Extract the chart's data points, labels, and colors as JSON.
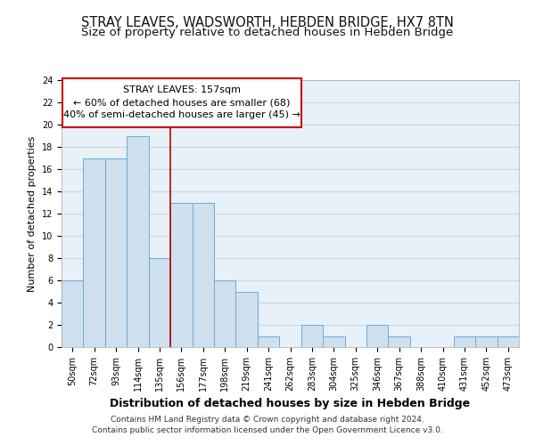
{
  "title": "STRAY LEAVES, WADSWORTH, HEBDEN BRIDGE, HX7 8TN",
  "subtitle": "Size of property relative to detached houses in Hebden Bridge",
  "xlabel": "Distribution of detached houses by size in Hebden Bridge",
  "ylabel": "Number of detached properties",
  "categories": [
    "50sqm",
    "72sqm",
    "93sqm",
    "114sqm",
    "135sqm",
    "156sqm",
    "177sqm",
    "198sqm",
    "219sqm",
    "241sqm",
    "262sqm",
    "283sqm",
    "304sqm",
    "325sqm",
    "346sqm",
    "367sqm",
    "388sqm",
    "410sqm",
    "431sqm",
    "452sqm",
    "473sqm"
  ],
  "values": [
    6,
    17,
    17,
    19,
    8,
    13,
    13,
    6,
    5,
    1,
    0,
    2,
    1,
    0,
    2,
    1,
    0,
    0,
    1,
    1,
    1
  ],
  "bar_color": "#cfe0ef",
  "bar_edgecolor": "#6aadd5",
  "grid_color": "#c8d8e8",
  "background_color": "#e8f0f8",
  "vline_x": 5,
  "vline_color": "#bb0000",
  "annotation_text": "STRAY LEAVES: 157sqm\n← 60% of detached houses are smaller (68)\n40% of semi-detached houses are larger (45) →",
  "annotation_box_facecolor": "#ffffff",
  "annotation_box_edgecolor": "#cc0000",
  "ylim": [
    0,
    24
  ],
  "yticks": [
    0,
    2,
    4,
    6,
    8,
    10,
    12,
    14,
    16,
    18,
    20,
    22,
    24
  ],
  "footer_line1": "Contains HM Land Registry data © Crown copyright and database right 2024.",
  "footer_line2": "Contains public sector information licensed under the Open Government Licence v3.0.",
  "title_fontsize": 10.5,
  "subtitle_fontsize": 9.5,
  "xlabel_fontsize": 9,
  "ylabel_fontsize": 8,
  "tick_fontsize": 7,
  "footer_fontsize": 6.5,
  "annotation_fontsize": 8
}
